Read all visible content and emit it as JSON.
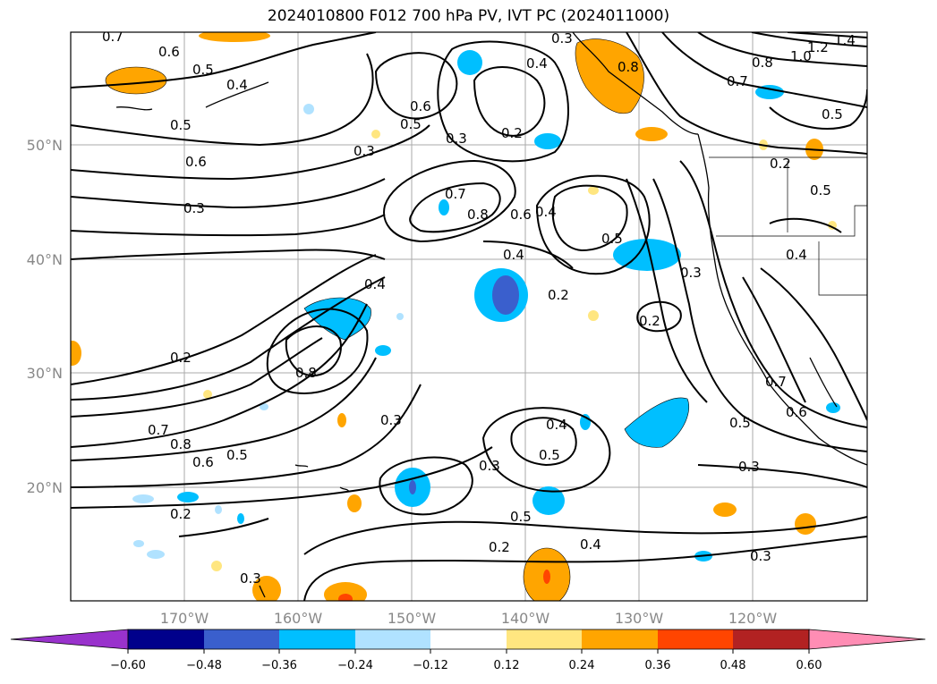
{
  "title": "2024010800 F012 700 hPa PV, IVT PC (2024011000)",
  "map": {
    "lat_labels": [
      "50°N",
      "40°N",
      "30°N",
      "20°N"
    ],
    "lon_labels": [
      "170°W",
      "160°W",
      "150°W",
      "140°W",
      "130°W",
      "120°W"
    ],
    "contour_labels": [
      "0.7",
      "0.6",
      "0.5",
      "0.4",
      "0.5",
      "0.6",
      "0.3",
      "0.6",
      "0.5",
      "0.3",
      "0.2",
      "0.4",
      "0.8",
      "1.2",
      "1.0",
      "0.8",
      "0.7",
      "0.5",
      "0.7",
      "0.8",
      "0.6",
      "0.4",
      "0.5",
      "0.2",
      "0.3",
      "0.2",
      "0.4",
      "0.2",
      "0.8",
      "0.7",
      "0.8",
      "0.6",
      "0.5",
      "0.3",
      "0.4",
      "0.5",
      "0.3",
      "0.5",
      "0.4",
      "0.2",
      "0.3",
      "0.7",
      "0.6",
      "0.5",
      "0.3",
      "0.2",
      "0.3",
      "0.4",
      "0.3",
      "1.4",
      "0.3",
      "0.5",
      "0.4",
      "0.2"
    ]
  },
  "colorbar": {
    "tick_labels": [
      "−0.60",
      "−0.48",
      "−0.36",
      "−0.24",
      "−0.12",
      "0.12",
      "0.24",
      "0.36",
      "0.48",
      "0.60"
    ],
    "colors": {
      "under": "#9932cc",
      "bins": [
        "#00008b",
        "#3a5fcd",
        "#00bfff",
        "#b0e2ff",
        "#ffffff",
        "#ffe680",
        "#ffa500",
        "#ff4500",
        "#b22222",
        "#ff8db4"
      ]
    }
  }
}
